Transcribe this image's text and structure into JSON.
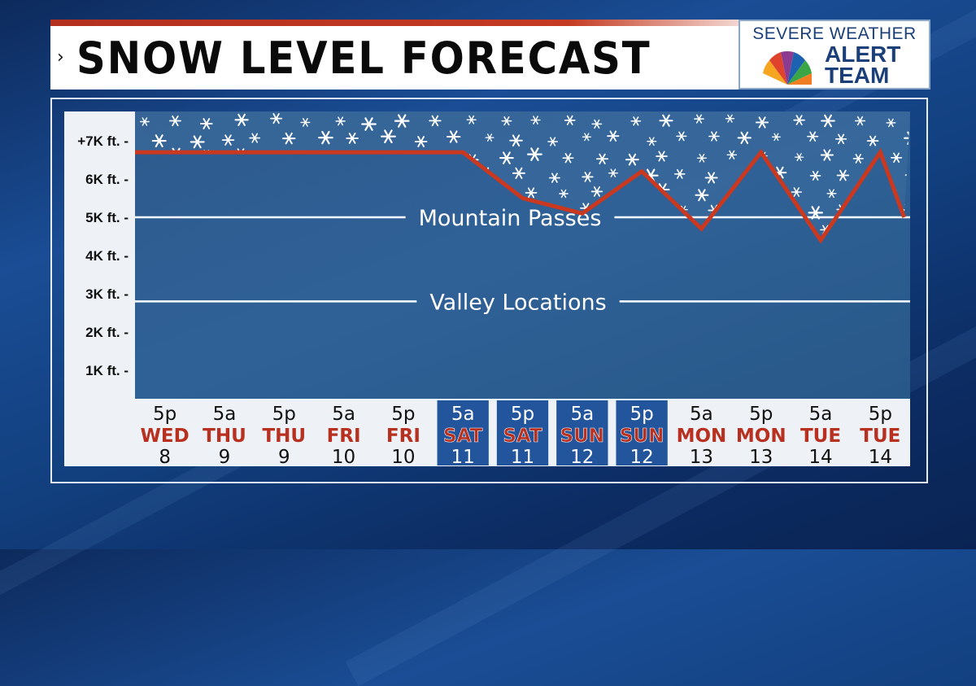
{
  "title": "SNOW LEVEL FORECAST",
  "logo": {
    "line1": "SEVERE WEATHER",
    "line2": "ALERT",
    "line3": "TEAM"
  },
  "colors": {
    "snow_line": "#c9381f",
    "day_name": "#b83020",
    "highlight_cell": "#22559c"
  },
  "chart_data": {
    "type": "line",
    "title": "SNOW LEVEL FORECAST",
    "xlabel": "",
    "ylabel": "",
    "y_ticks": [
      "+7K ft. -",
      "6K ft. -",
      "5K ft. -",
      "4K ft. -",
      "3K ft. -",
      "2K ft. -",
      "1K ft. -"
    ],
    "y_tick_values": [
      7000,
      6000,
      5000,
      4000,
      3000,
      2000,
      1000
    ],
    "ylim": [
      0,
      7700
    ],
    "x_categories": [
      {
        "time": "5p",
        "day": "WED",
        "date": "8",
        "highlight": false
      },
      {
        "time": "5a",
        "day": "THU",
        "date": "9",
        "highlight": false
      },
      {
        "time": "5p",
        "day": "THU",
        "date": "9",
        "highlight": false
      },
      {
        "time": "5a",
        "day": "FRI",
        "date": "10",
        "highlight": false
      },
      {
        "time": "5p",
        "day": "FRI",
        "date": "10",
        "highlight": false
      },
      {
        "time": "5a",
        "day": "SAT",
        "date": "11",
        "highlight": true
      },
      {
        "time": "5p",
        "day": "SAT",
        "date": "11",
        "highlight": true
      },
      {
        "time": "5a",
        "day": "SUN",
        "date": "12",
        "highlight": true
      },
      {
        "time": "5p",
        "day": "SUN",
        "date": "12",
        "highlight": true
      },
      {
        "time": "5a",
        "day": "MON",
        "date": "13",
        "highlight": false
      },
      {
        "time": "5p",
        "day": "MON",
        "date": "13",
        "highlight": false
      },
      {
        "time": "5a",
        "day": "TUE",
        "date": "14",
        "highlight": false
      },
      {
        "time": "5p",
        "day": "TUE",
        "date": "14",
        "highlight": false
      }
    ],
    "series": [
      {
        "values": [
          6700,
          6700,
          6700,
          6700,
          6700,
          6700,
          5500,
          5100,
          6200,
          4700,
          6700,
          4400,
          6700
        ],
        "extra_points": [
          {
            "x": 12.4,
            "y": 5000
          }
        ]
      }
    ],
    "reference_lines": [
      {
        "label": "Mountain Passes",
        "value": 5000
      },
      {
        "label": "Valley Locations",
        "value": 2800
      }
    ],
    "grid": false,
    "legend": "none"
  }
}
